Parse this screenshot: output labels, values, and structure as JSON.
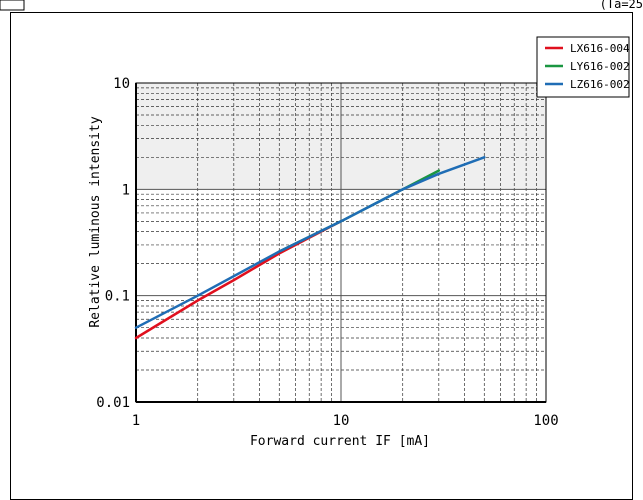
{
  "page": {
    "header_right": "(Ta=25"
  },
  "chart_data": {
    "type": "line",
    "title": "",
    "xlabel": "Forward current IF [mA]",
    "ylabel": "Relative luminous intensity",
    "x_scale": "log",
    "y_scale": "log",
    "xlim": [
      1,
      100
    ],
    "ylim": [
      0.01,
      10
    ],
    "grid": true,
    "legend_position": "top-right",
    "x_ticks": [
      {
        "value": 1,
        "label": "1"
      },
      {
        "value": 10,
        "label": "10"
      },
      {
        "value": 100,
        "label": "100"
      }
    ],
    "y_ticks": [
      {
        "value": 0.01,
        "label": "0.01"
      },
      {
        "value": 0.1,
        "label": "0.1"
      },
      {
        "value": 1,
        "label": "1"
      },
      {
        "value": 10,
        "label": "10"
      }
    ],
    "shaded_region": {
      "y_from": 1,
      "y_to": 10,
      "color": "#efefef"
    },
    "series": [
      {
        "name": "LX616-004",
        "color": "#e0101e",
        "points": [
          [
            1,
            0.04
          ],
          [
            2,
            0.09
          ],
          [
            3,
            0.14
          ],
          [
            5,
            0.25
          ],
          [
            7,
            0.35
          ],
          [
            10,
            0.5
          ]
        ]
      },
      {
        "name": "LY616-002",
        "color": "#1a9641",
        "points": [
          [
            5,
            0.26
          ],
          [
            10,
            0.5
          ],
          [
            20,
            1.0
          ],
          [
            30,
            1.5
          ]
        ]
      },
      {
        "name": "LZ616-002",
        "color": "#1f6db5",
        "points": [
          [
            1,
            0.05
          ],
          [
            2,
            0.1
          ],
          [
            5,
            0.26
          ],
          [
            10,
            0.5
          ],
          [
            20,
            1.0
          ],
          [
            30,
            1.4
          ],
          [
            50,
            2.0
          ]
        ]
      }
    ]
  }
}
